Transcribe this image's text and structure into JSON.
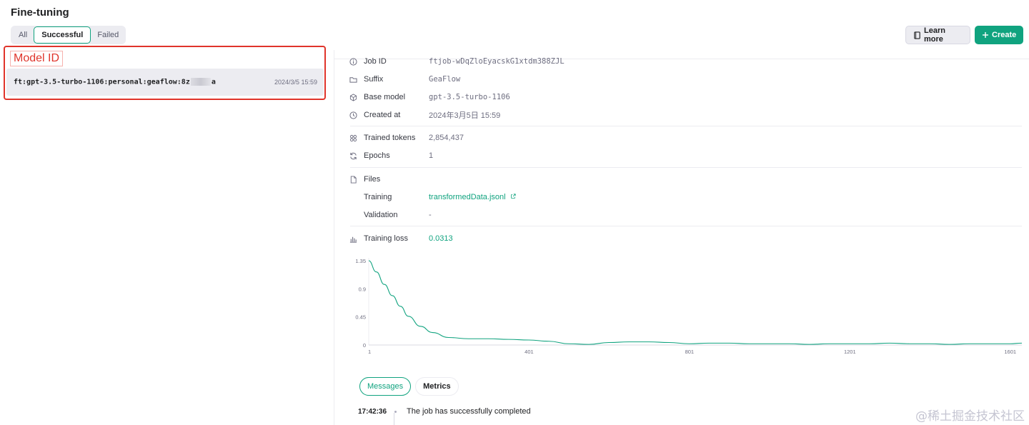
{
  "page": {
    "title": "Fine-tuning"
  },
  "filters": [
    {
      "label": "All",
      "active": false
    },
    {
      "label": "Successful",
      "active": true
    },
    {
      "label": "Failed",
      "active": false
    }
  ],
  "header_actions": {
    "learn_more": "Learn more",
    "create": "Create"
  },
  "annotation": {
    "label": "Model ID",
    "color": "#e0342b"
  },
  "model_list": [
    {
      "model_id_prefix": "ft:gpt-3.5-turbo-1106:personal:geaflow:8z",
      "model_id_suffix": "a",
      "date": "2024/3/5 15:59"
    }
  ],
  "details": {
    "job_id": {
      "label": "Job ID",
      "value": "ftjob-wDqZloEyacskG1xtdm388ZJL",
      "icon": "info-icon"
    },
    "suffix": {
      "label": "Suffix",
      "value": "GeaFlow",
      "icon": "folder-icon"
    },
    "base_model": {
      "label": "Base model",
      "value": "gpt-3.5-turbo-1106",
      "icon": "cube-icon"
    },
    "created_at": {
      "label": "Created at",
      "value": "2024年3月5日 15:59",
      "icon": "clock-icon"
    },
    "trained_tokens": {
      "label": "Trained tokens",
      "value": "2,854,437",
      "icon": "tokens-icon"
    },
    "epochs": {
      "label": "Epochs",
      "value": "1",
      "icon": "refresh-icon"
    },
    "files": {
      "label": "Files",
      "icon": "file-icon"
    },
    "training": {
      "label": "Training",
      "value": "transformedData.jsonl",
      "icon": "external-link-icon"
    },
    "validation": {
      "label": "Validation",
      "value": "-"
    },
    "training_loss": {
      "label": "Training loss",
      "value": "0.0313",
      "icon": "bar-chart-icon"
    }
  },
  "chart_data": {
    "type": "line",
    "title": "",
    "xlabel": "",
    "ylabel": "",
    "x_ticks": [
      "1",
      "401",
      "801",
      "1201",
      "1601"
    ],
    "y_ticks": [
      "1.35",
      "0.9",
      "0.45",
      "0"
    ],
    "xlim": [
      1,
      1630
    ],
    "ylim": [
      0,
      1.35
    ],
    "grid": false,
    "line_color": "#10a37f",
    "series": [
      {
        "x": [
          1,
          20,
          40,
          60,
          80,
          100,
          130,
          160,
          200,
          250,
          300,
          350,
          400,
          450,
          500,
          550,
          600,
          650,
          700,
          750,
          800,
          850,
          900,
          950,
          1000,
          1050,
          1100,
          1150,
          1200,
          1250,
          1300,
          1350,
          1400,
          1450,
          1500,
          1550,
          1600,
          1630
        ],
        "y": [
          1.35,
          1.17,
          0.97,
          0.79,
          0.62,
          0.46,
          0.3,
          0.2,
          0.12,
          0.1,
          0.1,
          0.09,
          0.08,
          0.06,
          0.02,
          0.01,
          0.04,
          0.05,
          0.05,
          0.04,
          0.02,
          0.03,
          0.03,
          0.02,
          0.02,
          0.02,
          0.01,
          0.02,
          0.02,
          0.02,
          0.03,
          0.02,
          0.02,
          0.01,
          0.02,
          0.02,
          0.02,
          0.03
        ]
      }
    ]
  },
  "bottom_tabs": {
    "messages": "Messages",
    "metrics": "Metrics"
  },
  "events": [
    {
      "time": "17:42:36",
      "message": "The job has successfully completed"
    }
  ],
  "watermark": "@稀土掘金技术社区"
}
